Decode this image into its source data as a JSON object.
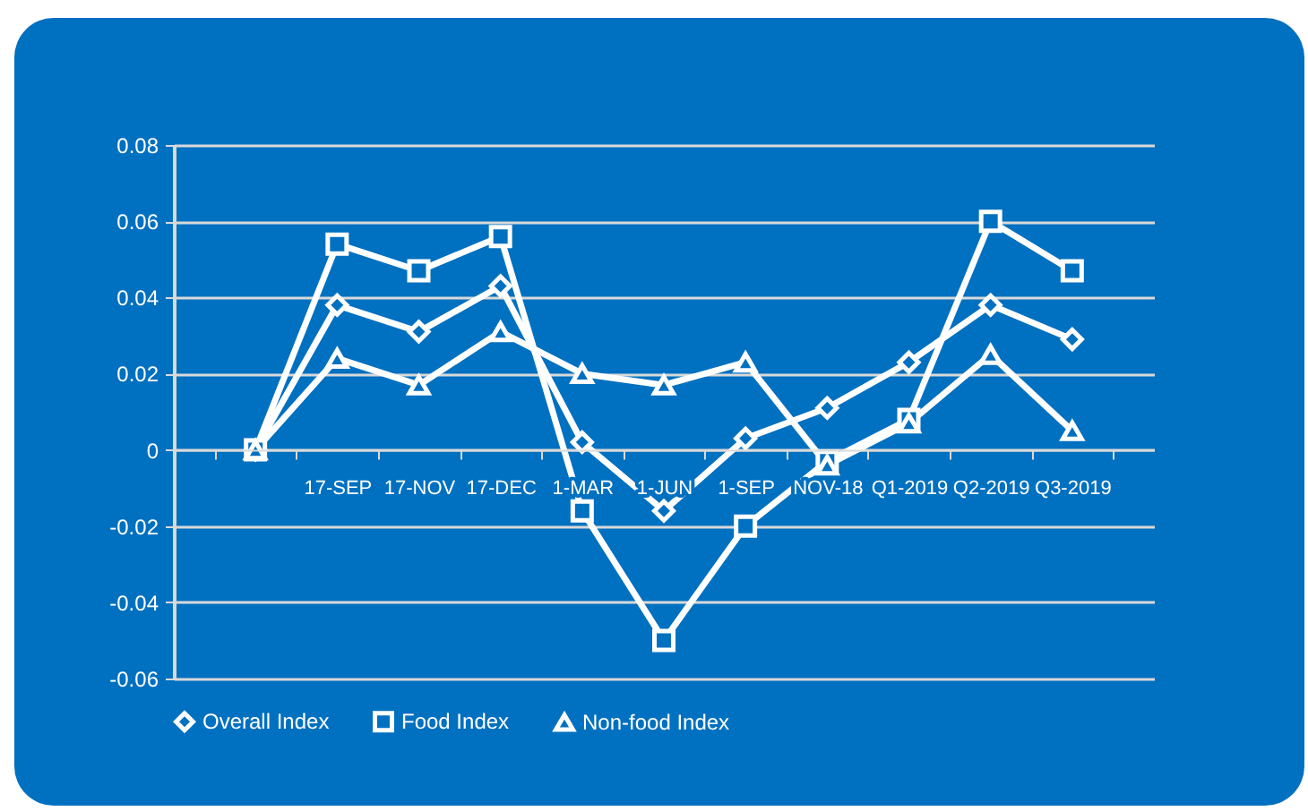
{
  "chart_data": {
    "type": "line",
    "categories": [
      null,
      "17-SEP",
      "17-NOV",
      "17-DEC",
      "1-MAR",
      "1-JUN",
      "1-SEP",
      "NOV-18",
      "Q1-2019",
      "Q2-2019",
      "Q3-2019"
    ],
    "series": [
      {
        "name": "Overall Index",
        "color": "#ffffff",
        "marker": "diamond",
        "values": [
          0,
          0.038,
          0.031,
          0.043,
          0.002,
          -0.016,
          0.003,
          0.011,
          0.023,
          0.038,
          0.029
        ]
      },
      {
        "name": "Food Index",
        "color": "#ffffff",
        "marker": "square",
        "values": [
          0,
          0.054,
          0.047,
          0.056,
          -0.016,
          -0.05,
          -0.02,
          -0.003,
          0.008,
          0.06,
          0.047
        ]
      },
      {
        "name": "Non-food Index",
        "color": "#ffffff",
        "marker": "triangle",
        "values": [
          0,
          0.024,
          0.017,
          0.031,
          0.02,
          0.017,
          0.023,
          -0.004,
          0.007,
          0.025,
          0.005
        ]
      }
    ],
    "ylim": [
      -0.06,
      0.08
    ],
    "yticks": [
      -0.06,
      -0.04,
      -0.02,
      0,
      0.02,
      0.04,
      0.06,
      0.08
    ],
    "grid": "y",
    "legend": "bottom",
    "line_style": "solid"
  }
}
